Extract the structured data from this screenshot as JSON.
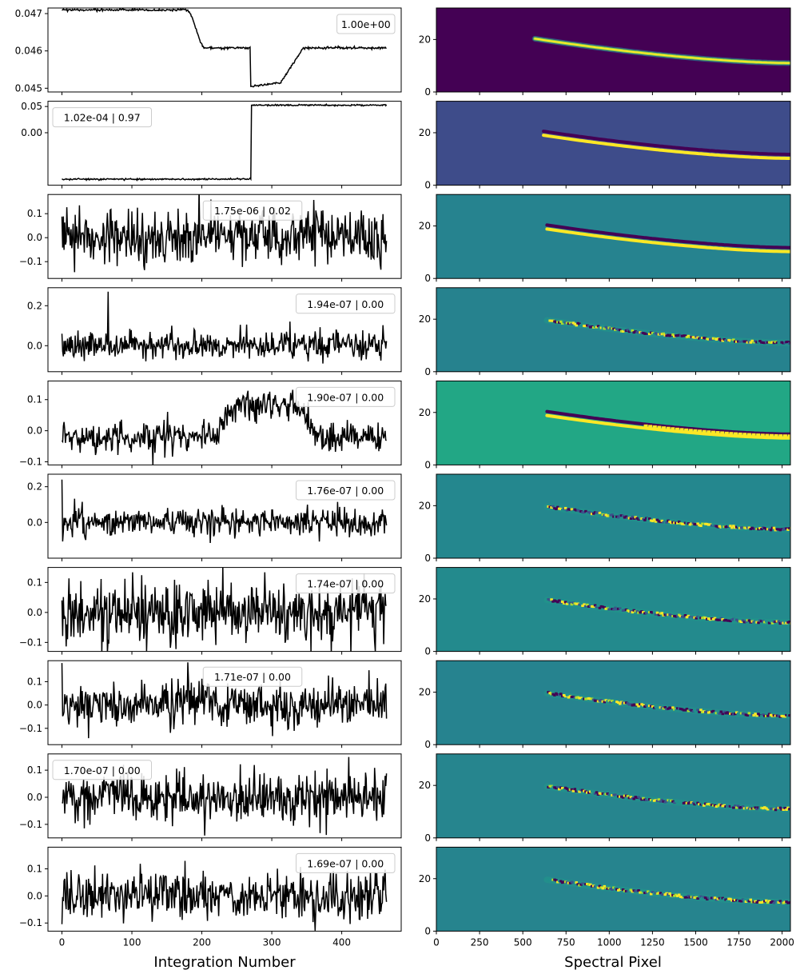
{
  "chart_data": {
    "type": "line",
    "layout": "10 rows x 2 columns; left: time series of principal components vs integration number, right: 2D component images (viridis) vs spectral pixel",
    "left": {
      "xlabel": "Integration Number",
      "xlim": [
        -20,
        485
      ],
      "xticks": [
        0,
        100,
        200,
        300,
        400
      ],
      "line_color": "#000000",
      "n_points": 465
    },
    "right": {
      "xlabel": "Spectral Pixel",
      "xlim": [
        0,
        2048
      ],
      "xticks": [
        0,
        250,
        500,
        750,
        1000,
        1250,
        1500,
        1750,
        2000
      ],
      "ylim": [
        0,
        32
      ],
      "yticks": [
        0,
        20
      ],
      "colormap": "viridis"
    },
    "panels": [
      {
        "label": "1.00e+00",
        "label_pos": "top-right",
        "ylim": [
          0.0449,
          0.04715
        ],
        "yticks": [
          0.045,
          0.046,
          0.047
        ],
        "ytick_labels": [
          "0.045",
          "0.046",
          "0.047"
        ]
      },
      {
        "label": "1.02e-04 | 0.97",
        "label_pos": "top-left",
        "ylim": [
          -0.1,
          0.06
        ],
        "yticks": [
          0.0,
          0.05
        ],
        "ytick_labels": [
          "0.00",
          "0.05"
        ]
      },
      {
        "label": "1.75e-06 | 0.02",
        "label_pos": "top-center",
        "ylim": [
          -0.17,
          0.18
        ],
        "yticks": [
          -0.1,
          0.0,
          0.1
        ],
        "ytick_labels": [
          "−0.1",
          "0.0",
          "0.1"
        ]
      },
      {
        "label": "1.94e-07 | 0.00",
        "label_pos": "top-right",
        "ylim": [
          -0.13,
          0.29
        ],
        "yticks": [
          0.0,
          0.2
        ],
        "ytick_labels": [
          "0.0",
          "0.2"
        ]
      },
      {
        "label": "1.90e-07 | 0.00",
        "label_pos": "top-right",
        "ylim": [
          -0.11,
          0.16
        ],
        "yticks": [
          -0.1,
          0.0,
          0.1
        ],
        "ytick_labels": [
          "−0.1",
          "0.0",
          "0.1"
        ]
      },
      {
        "label": "1.76e-07 | 0.00",
        "label_pos": "top-right",
        "ylim": [
          -0.2,
          0.27
        ],
        "yticks": [
          0.0,
          0.2
        ],
        "ytick_labels": [
          "0.0",
          "0.2"
        ]
      },
      {
        "label": "1.74e-07 | 0.00",
        "label_pos": "top-right",
        "ylim": [
          -0.13,
          0.15
        ],
        "yticks": [
          -0.1,
          0.0,
          0.1
        ],
        "ytick_labels": [
          "−0.1",
          "0.0",
          "0.1"
        ]
      },
      {
        "label": "1.71e-07 | 0.00",
        "label_pos": "top-center",
        "ylim": [
          -0.17,
          0.19
        ],
        "yticks": [
          -0.1,
          0.0,
          0.1
        ],
        "ytick_labels": [
          "−0.1",
          "0.0",
          "0.1"
        ]
      },
      {
        "label": "1.70e-07 | 0.00",
        "label_pos": "top-left",
        "ylim": [
          -0.15,
          0.16
        ],
        "yticks": [
          -0.1,
          0.0,
          0.1
        ],
        "ytick_labels": [
          "−0.1",
          "0.0",
          "0.1"
        ]
      },
      {
        "label": "1.69e-07 | 0.00",
        "label_pos": "top-right",
        "ylim": [
          -0.13,
          0.18
        ],
        "yticks": [
          -0.1,
          0.0,
          0.1
        ],
        "ytick_labels": [
          "−0.1",
          "0.0",
          "0.1"
        ]
      }
    ],
    "series": [
      {
        "shape": "transit",
        "baseline": 0.0471,
        "mid_level": 0.04608,
        "low_level": 0.04505,
        "low_end": 0.04515,
        "steps": [
          [
            178,
            205
          ],
          [
            270,
            272
          ],
          [
            313,
            345
          ]
        ],
        "noise": 1.5e-05
      },
      {
        "shape": "step",
        "before": -0.0885,
        "after": 0.0525,
        "step_at": 271,
        "noise": 0.0007
      },
      {
        "shape": "noise",
        "sigma": 0.055,
        "seed": 3
      },
      {
        "shape": "noise",
        "sigma": 0.035,
        "seed": 4,
        "spikes": [
          [
            66,
            0.27
          ],
          [
            0,
            0.06
          ]
        ]
      },
      {
        "shape": "bump",
        "sigma": 0.025,
        "seed": 5,
        "bump_level": 0.065,
        "bump_span": [
          230,
          350
        ]
      },
      {
        "shape": "noise",
        "sigma": 0.04,
        "seed": 6,
        "spikes": [
          [
            0,
            0.24
          ]
        ]
      },
      {
        "shape": "noise",
        "sigma": 0.05,
        "seed": 7
      },
      {
        "shape": "noise",
        "sigma": 0.05,
        "seed": 8,
        "spikes": [
          [
            0,
            0.18
          ]
        ]
      },
      {
        "shape": "noise",
        "sigma": 0.045,
        "seed": 9
      },
      {
        "shape": "noise",
        "sigma": 0.045,
        "seed": 10
      }
    ],
    "images": [
      {
        "bg": "#440154",
        "style": "smooth",
        "pos": 0
      },
      {
        "bg": "#3e4c8a",
        "style": "dipole",
        "pos": 0
      },
      {
        "bg": "#26838f",
        "style": "dipole",
        "pos": 0
      },
      {
        "bg": "#26828e",
        "style": "speckle",
        "pos": 0
      },
      {
        "bg": "#22a785",
        "style": "dipole-dark",
        "pos": 0
      },
      {
        "bg": "#24878e",
        "style": "speckle",
        "pos": 0
      },
      {
        "bg": "#238a8d",
        "style": "speckle",
        "pos": 0
      },
      {
        "bg": "#26838f",
        "style": "speckle",
        "pos": 0
      },
      {
        "bg": "#26858e",
        "style": "speckle",
        "pos": 0
      },
      {
        "bg": "#26848e",
        "style": "speckle",
        "pos": 0
      }
    ]
  }
}
